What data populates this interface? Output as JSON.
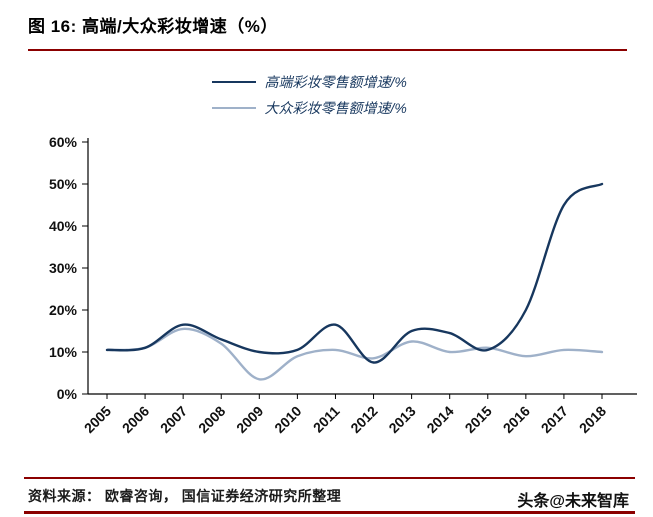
{
  "header": {
    "title": "图 16:  高端/大众彩妆增速（%）"
  },
  "chart_data": {
    "type": "line",
    "title": "图 16: 高端/大众彩妆增速（%）",
    "x": [
      2005,
      2006,
      2007,
      2008,
      2009,
      2010,
      2011,
      2012,
      2013,
      2014,
      2015,
      2016,
      2017,
      2018
    ],
    "series": [
      {
        "name": "高端彩妆零售额增速/%",
        "color": "#17375E",
        "values": [
          10.5,
          11,
          16.5,
          13,
          10,
          10.5,
          16.5,
          7.5,
          15,
          14.5,
          10.5,
          20,
          45,
          50
        ]
      },
      {
        "name": "大众彩妆零售额增速/%",
        "color": "#9FB1C9",
        "values": [
          10.5,
          11,
          15.5,
          12,
          3.5,
          9,
          10.5,
          8.5,
          12.5,
          10,
          11,
          9,
          10.5,
          10
        ]
      }
    ],
    "ylim": [
      0,
      60
    ],
    "yticks": [
      "0%",
      "10%",
      "20%",
      "30%",
      "40%",
      "50%",
      "60%"
    ],
    "xlabel": "",
    "ylabel": "",
    "grid": false,
    "legend_position": "top-center"
  },
  "footer": {
    "source": "资料来源： 欧睿咨询， 国信证券经济研究所整理",
    "branding": "头条@未来智库"
  },
  "colors": {
    "accent_rule": "#8B0000",
    "axis_text": "#111111"
  }
}
